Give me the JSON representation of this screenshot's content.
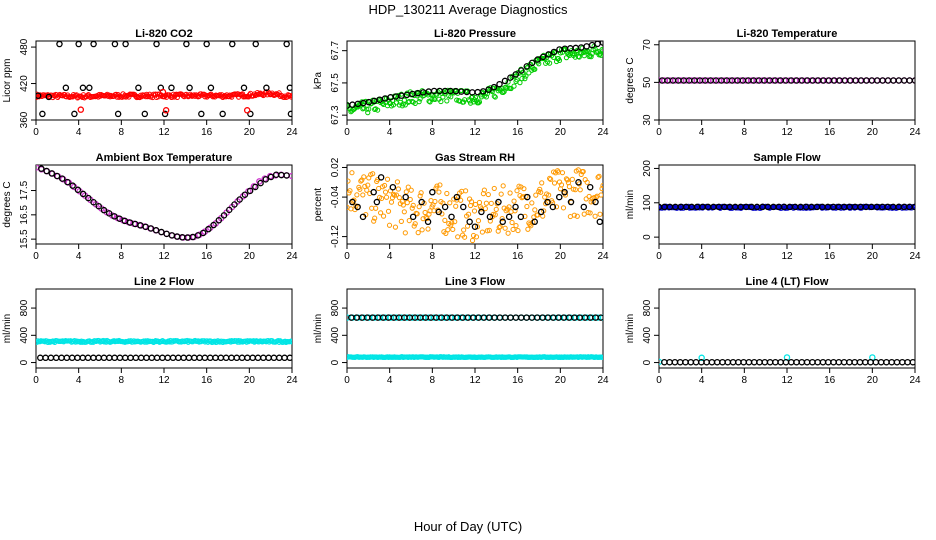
{
  "figure": {
    "title": "HDP_130211  Average Diagnostics",
    "xlabel": "Hour of Day (UTC)"
  },
  "chart_data": [
    {
      "type": "scatter",
      "title": "Li-820 CO2",
      "ylabel": "Licor ppm",
      "xlim": [
        0,
        24
      ],
      "ylim": [
        360,
        490
      ],
      "xticks": [
        0,
        4,
        8,
        12,
        16,
        20,
        24
      ],
      "yticks": [
        360,
        420,
        480
      ],
      "colors": {
        "primary": "#ff0000",
        "outline": "#000000"
      },
      "series": [
        {
          "kind": "dense_band",
          "color": "#ff0000",
          "x": [
            0,
            4,
            8,
            12,
            16,
            18,
            20,
            22,
            24
          ],
          "y": [
            400,
            399,
            400,
            400,
            400,
            400,
            401,
            404,
            398
          ],
          "spread": 3
        },
        {
          "kind": "points",
          "color": "#000000",
          "x": [
            0.2,
            0.6,
            1.2,
            2.2,
            2.8,
            3.6,
            4.0,
            4.4,
            5.0,
            5.4,
            7.4,
            7.7,
            8.4,
            9.6,
            10.2,
            11.3,
            11.7,
            12.1,
            12.7,
            14.1,
            14.4,
            15.5,
            16.0,
            16.4,
            17.5,
            18.4,
            19.5,
            20.1,
            20.6,
            21.6,
            23.5,
            23.8,
            23.9
          ],
          "y": [
            400,
            370,
            398,
            485,
            413,
            370,
            485,
            413,
            413,
            485,
            485,
            370,
            485,
            413,
            370,
            485,
            413,
            370,
            413,
            485,
            413,
            370,
            485,
            413,
            370,
            485,
            413,
            370,
            485,
            413,
            485,
            413,
            370
          ]
        },
        {
          "kind": "points",
          "color": "#ff0000",
          "x": [
            4.2,
            11.9,
            12.2,
            19.8
          ],
          "y": [
            377,
            406,
            376,
            376
          ]
        }
      ]
    },
    {
      "type": "scatter",
      "title": "Li-820 Pressure",
      "ylabel": "kPa",
      "xlim": [
        0,
        24
      ],
      "ylim": [
        67.27,
        67.76
      ],
      "xticks": [
        0,
        4,
        8,
        12,
        16,
        20,
        24
      ],
      "yticks": [
        67.3,
        67.5,
        67.7
      ],
      "colors": {
        "primary": "#00cc00",
        "outline": "#000000"
      },
      "series": [
        {
          "kind": "dense_band",
          "color": "#00cc00",
          "x": [
            0,
            2,
            4,
            6,
            8,
            10,
            12,
            13,
            14,
            16,
            17,
            18,
            20,
            22,
            24
          ],
          "y": [
            67.33,
            67.35,
            67.38,
            67.41,
            67.42,
            67.42,
            67.41,
            67.42,
            67.45,
            67.53,
            67.58,
            67.62,
            67.68,
            67.68,
            67.71
          ],
          "spread": 0.04
        },
        {
          "kind": "line_points",
          "color": "#000000",
          "x": [
            0,
            2,
            4,
            6,
            8,
            10,
            12,
            13,
            14,
            16,
            17,
            18,
            20,
            22,
            24
          ],
          "y": [
            67.36,
            67.38,
            67.41,
            67.43,
            67.45,
            67.45,
            67.44,
            67.45,
            67.48,
            67.56,
            67.61,
            67.65,
            67.71,
            67.72,
            67.75
          ]
        }
      ]
    },
    {
      "type": "scatter",
      "title": "Li-820 Temperature",
      "ylabel": "degrees C",
      "xlim": [
        0,
        24
      ],
      "ylim": [
        30,
        72
      ],
      "xticks": [
        0,
        4,
        8,
        12,
        16,
        20,
        24
      ],
      "yticks": [
        30,
        50,
        70
      ],
      "colors": {
        "primary": "#cc33cc",
        "outline": "#000000"
      },
      "series": [
        {
          "kind": "line_points",
          "color": "#cc33cc",
          "x": [
            0,
            24
          ],
          "y": [
            51,
            51
          ]
        },
        {
          "kind": "line_points",
          "color": "#000000",
          "x": [
            0.3,
            24
          ],
          "y": [
            51,
            51
          ]
        }
      ]
    },
    {
      "type": "scatter",
      "title": "Ambient Box Temperature",
      "ylabel": "degrees C",
      "xlim": [
        0,
        24
      ],
      "ylim": [
        15.3,
        18.55
      ],
      "xticks": [
        0,
        4,
        8,
        12,
        16,
        20,
        24
      ],
      "yticks": [
        15.5,
        16.5,
        17.5
      ],
      "colors": {
        "primary": "#cc33cc",
        "outline": "#000000"
      },
      "series": [
        {
          "kind": "line_points",
          "color": "#cc33cc",
          "x": [
            0,
            1,
            2,
            3,
            4,
            5,
            6,
            7,
            8,
            9,
            10,
            11,
            12,
            13,
            14,
            15,
            16,
            17,
            18,
            19,
            20,
            21,
            22,
            23,
            24
          ],
          "y": [
            18.45,
            18.3,
            18.1,
            17.85,
            17.5,
            17.15,
            16.8,
            16.5,
            16.3,
            16.15,
            16.05,
            15.9,
            15.75,
            15.62,
            15.55,
            15.6,
            15.85,
            16.2,
            16.65,
            17.1,
            17.5,
            17.9,
            18.1,
            18.15,
            18.1
          ]
        },
        {
          "kind": "line_points",
          "color": "#000000",
          "x": [
            0.5,
            1.5,
            2.5,
            3.5,
            4.5,
            5.5,
            6.5,
            7.5,
            8.5,
            9.5,
            10.5,
            11.5,
            12.5,
            13.5,
            14.5,
            15.5,
            16.5,
            17.5,
            18.5,
            19.5,
            21.5,
            22.5,
            23.5
          ],
          "y": [
            18.4,
            18.2,
            17.98,
            17.68,
            17.33,
            16.98,
            16.65,
            16.4,
            16.22,
            16.1,
            15.98,
            15.83,
            15.68,
            15.58,
            15.56,
            15.7,
            16.02,
            16.42,
            16.88,
            17.3,
            17.95,
            18.15,
            18.12
          ]
        }
      ]
    },
    {
      "type": "scatter",
      "title": "Gas Stream RH",
      "ylabel": "percent",
      "xlim": [
        0,
        24
      ],
      "ylim": [
        -0.135,
        0.025
      ],
      "xticks": [
        0,
        4,
        8,
        12,
        16,
        20,
        24
      ],
      "yticks": [
        -0.12,
        -0.04,
        0.02
      ],
      "colors": {
        "primary": "#ff9900",
        "outline": "#000000"
      },
      "series": [
        {
          "kind": "dense_band",
          "color": "#ff9900",
          "x": [
            0,
            2,
            4,
            6,
            8,
            10,
            12,
            14,
            16,
            18,
            20,
            22,
            24
          ],
          "y": [
            -0.02,
            -0.04,
            -0.05,
            -0.07,
            -0.06,
            -0.07,
            -0.08,
            -0.07,
            -0.06,
            -0.05,
            -0.03,
            -0.03,
            -0.03
          ],
          "spread": 0.05
        },
        {
          "kind": "points",
          "color": "#000000",
          "x": [
            0.5,
            1.0,
            1.5,
            2.5,
            2.8,
            3.2,
            4.3,
            5.5,
            6.2,
            7.0,
            7.6,
            8.0,
            8.6,
            9.2,
            9.8,
            10.3,
            10.9,
            11.5,
            12.0,
            12.6,
            13.4,
            14.2,
            14.6,
            15.2,
            15.8,
            16.3,
            16.9,
            17.6,
            18.2,
            18.8,
            19.3,
            19.9,
            20.4,
            21.0,
            21.7,
            22.2,
            22.8,
            23.3,
            23.7
          ],
          "y": [
            -0.05,
            -0.06,
            -0.08,
            -0.03,
            -0.05,
            0.0,
            -0.02,
            -0.04,
            -0.08,
            -0.05,
            -0.09,
            -0.03,
            -0.07,
            -0.06,
            -0.08,
            -0.04,
            -0.06,
            -0.09,
            -0.1,
            -0.07,
            -0.08,
            -0.05,
            -0.09,
            -0.08,
            -0.06,
            -0.08,
            -0.04,
            -0.09,
            -0.07,
            -0.05,
            -0.06,
            -0.04,
            -0.03,
            -0.05,
            -0.01,
            -0.06,
            -0.02,
            -0.05,
            -0.09
          ]
        }
      ]
    },
    {
      "type": "scatter",
      "title": "Sample Flow",
      "ylabel": "ml/min",
      "xlim": [
        0,
        24
      ],
      "ylim": [
        -20,
        210
      ],
      "xticks": [
        0,
        4,
        8,
        12,
        16,
        20,
        24
      ],
      "yticks": [
        0,
        100,
        200
      ],
      "colors": {
        "primary": "#0000cc",
        "outline": "#000000"
      },
      "series": [
        {
          "kind": "dense_band",
          "color": "#0000cc",
          "x": [
            0,
            24
          ],
          "y": [
            87,
            87
          ],
          "spread": 3
        },
        {
          "kind": "line_points",
          "color": "#000000",
          "x": [
            0,
            24
          ],
          "y": [
            88,
            88
          ]
        }
      ]
    },
    {
      "type": "scatter",
      "title": "Line 2 Flow",
      "ylabel": "ml/min",
      "xlim": [
        0,
        24
      ],
      "ylim": [
        -80,
        1080
      ],
      "xticks": [
        0,
        4,
        8,
        12,
        16,
        20,
        24
      ],
      "yticks": [
        0,
        400,
        800
      ],
      "colors": {
        "primary": "#00e5e5",
        "outline": "#000000"
      },
      "series": [
        {
          "kind": "dense_band",
          "color": "#00e5e5",
          "x": [
            0,
            24
          ],
          "y": [
            310,
            310
          ],
          "spread": 14
        },
        {
          "kind": "line_points",
          "color": "#000000",
          "x": [
            0.4,
            23.8
          ],
          "y": [
            70,
            70
          ]
        }
      ]
    },
    {
      "type": "scatter",
      "title": "Line 3 Flow",
      "ylabel": "ml/min",
      "xlim": [
        0,
        24
      ],
      "ylim": [
        -80,
        1080
      ],
      "xticks": [
        0,
        4,
        8,
        12,
        16,
        20,
        24
      ],
      "yticks": [
        0,
        400,
        800
      ],
      "colors": {
        "primary": "#00e5e5",
        "outline": "#000000"
      },
      "series": [
        {
          "kind": "dense_band",
          "color": "#00e5e5",
          "x": [
            0,
            24
          ],
          "y": [
            80,
            80
          ],
          "spread": 5
        },
        {
          "kind": "line_points",
          "color": "#00e5e5",
          "x": [
            0,
            24
          ],
          "y": [
            660,
            660
          ]
        },
        {
          "kind": "line_points",
          "color": "#000000",
          "x": [
            0.4,
            23.8
          ],
          "y": [
            660,
            660
          ]
        }
      ]
    },
    {
      "type": "scatter",
      "title": "Line 4 (LT) Flow",
      "ylabel": "ml/min",
      "xlim": [
        0,
        24
      ],
      "ylim": [
        -80,
        1080
      ],
      "xticks": [
        0,
        4,
        8,
        12,
        16,
        20,
        24
      ],
      "yticks": [
        0,
        400,
        800
      ],
      "colors": {
        "primary": "#00e5e5",
        "outline": "#000000"
      },
      "series": [
        {
          "kind": "points",
          "color": "#00e5e5",
          "x": [
            0,
            4,
            12,
            20
          ],
          "y": [
            10,
            70,
            75,
            75
          ]
        },
        {
          "kind": "line_points",
          "color": "#000000",
          "x": [
            0.5,
            23.8
          ],
          "y": [
            5,
            5
          ]
        }
      ]
    }
  ]
}
